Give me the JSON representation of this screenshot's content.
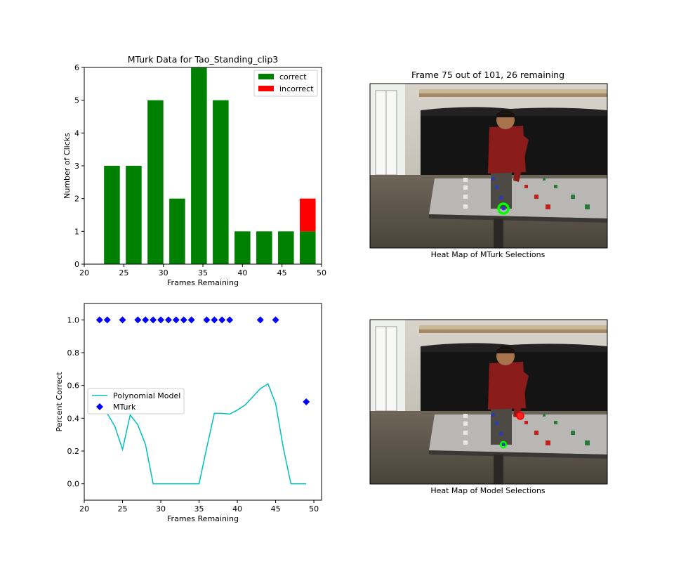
{
  "chart_data": [
    {
      "type": "bar",
      "title": "MTurk Data for Tao_Standing_clip3",
      "xlabel": "Frames Remaining",
      "ylabel": "Number of Clicks",
      "xlim": [
        20,
        50
      ],
      "ylim": [
        0,
        6
      ],
      "xticks": [
        20,
        25,
        30,
        35,
        40,
        45,
        50
      ],
      "yticks": [
        0,
        1,
        2,
        3,
        4,
        5,
        6
      ],
      "legend_position": "top-right",
      "categories": [
        23.5,
        26.25,
        29.0,
        31.75,
        34.5,
        37.25,
        40.0,
        42.75,
        45.5,
        48.25
      ],
      "bar_width": 2.0,
      "stacked": true,
      "series": [
        {
          "name": "correct",
          "color": "#008000",
          "values": [
            3,
            3,
            5,
            2,
            6,
            5,
            1,
            1,
            1,
            1
          ]
        },
        {
          "name": "incorrect",
          "color": "#ff0000",
          "values": [
            0,
            0,
            0,
            0,
            0,
            0,
            0,
            0,
            0,
            1
          ]
        }
      ]
    },
    {
      "type": "image",
      "title": "Frame 75 out of 101, 26 remaining",
      "xlabel": "Heat Map of MTurk Selections",
      "marker_color": "#00ff00"
    },
    {
      "type": "line",
      "xlabel": "Frames Remaining",
      "ylabel": "Percent Correct",
      "xlim": [
        20,
        51
      ],
      "ylim": [
        -0.1,
        1.1
      ],
      "xticks": [
        20,
        25,
        30,
        35,
        40,
        45,
        50
      ],
      "yticks": [
        0.0,
        0.2,
        0.4,
        0.6,
        0.8,
        1.0
      ],
      "ytick_labels": [
        "0.0",
        "0.2",
        "0.4",
        "0.6",
        "0.8",
        "1.0"
      ],
      "legend_position": "center-left",
      "series": [
        {
          "name": "Polynomial Model",
          "kind": "line",
          "color": "#00bfbf",
          "x": [
            22,
            23,
            24,
            25,
            26,
            27,
            28,
            29,
            30,
            31,
            32,
            33,
            34,
            35,
            36,
            37,
            38,
            39,
            40,
            41,
            42,
            43,
            44,
            45,
            46,
            47,
            48,
            49
          ],
          "y": [
            0.57,
            0.43,
            0.35,
            0.21,
            0.42,
            0.36,
            0.24,
            0.0,
            0.0,
            0.0,
            0.0,
            0.0,
            0.0,
            0.0,
            0.22,
            0.43,
            0.43,
            0.425,
            0.45,
            0.48,
            0.53,
            0.58,
            0.61,
            0.49,
            0.22,
            0.0,
            0.0,
            0.0
          ]
        },
        {
          "name": "MTurk",
          "kind": "scatter",
          "marker": "diamond",
          "color": "#0000ff",
          "x": [
            22,
            23,
            25,
            27,
            28,
            29,
            30,
            31,
            32,
            33,
            34,
            36,
            37,
            38,
            39,
            43,
            45,
            49
          ],
          "y": [
            1,
            1,
            1,
            1,
            1,
            1,
            1,
            1,
            1,
            1,
            1,
            1,
            1,
            1,
            1,
            1,
            1,
            0.5
          ]
        }
      ]
    },
    {
      "type": "image",
      "xlabel": "Heat Map of Model Selections",
      "marker_colors": [
        "#00ff00",
        "#ff0000"
      ]
    }
  ]
}
